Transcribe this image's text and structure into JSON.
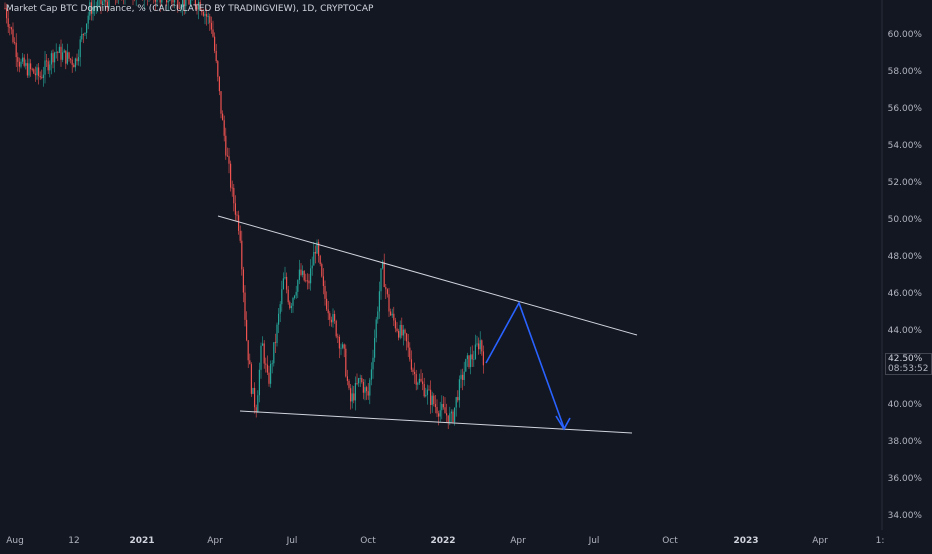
{
  "title": "Market Cap BTC Dominance, % (CALCULATED BY TRADINGVIEW), 1D, CRYPTOCAP",
  "price_badge": {
    "value": "42.50%",
    "countdown": "08:53:52"
  },
  "chart_data": {
    "type": "candlestick",
    "y_ticks": [
      "60.00%",
      "58.00%",
      "56.00%",
      "54.00%",
      "52.00%",
      "50.00%",
      "48.00%",
      "46.00%",
      "44.00%",
      "42.00%",
      "40.00%",
      "38.00%",
      "36.00%",
      "34.00%"
    ],
    "x_ticks": [
      {
        "label": "Aug",
        "bold": false
      },
      {
        "label": "12",
        "bold": false
      },
      {
        "label": "2021",
        "bold": true
      },
      {
        "label": "Apr",
        "bold": false
      },
      {
        "label": "Jul",
        "bold": false
      },
      {
        "label": "Oct",
        "bold": false
      },
      {
        "label": "2022",
        "bold": true
      },
      {
        "label": "Apr",
        "bold": false
      },
      {
        "label": "Jul",
        "bold": false
      },
      {
        "label": "Oct",
        "bold": false
      },
      {
        "label": "2023",
        "bold": true
      },
      {
        "label": "Apr",
        "bold": false
      },
      {
        "label": "1:"
      }
    ],
    "ylim": [
      33.5,
      62.5
    ],
    "colors": {
      "up": "#26a69a",
      "down": "#ef5350",
      "trendline": "#d1d4dc",
      "projection": "#2962ff",
      "background": "#131722"
    }
  }
}
